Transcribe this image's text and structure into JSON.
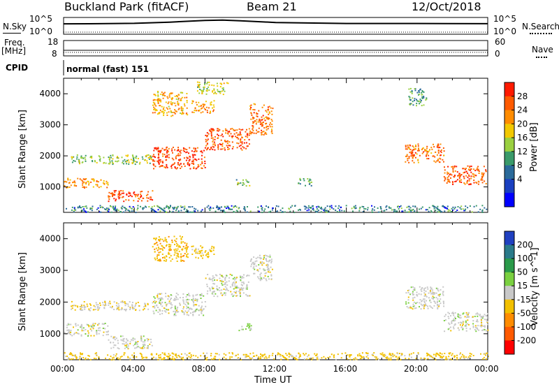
{
  "header": {
    "title": "Buckland Park (fitACF)",
    "beam": "Beam 21",
    "date": "12/Oct/2018"
  },
  "strip": {
    "nsky_label": "N.Sky",
    "nsearch_label": "N.Search",
    "noise_top_tick": "10^5",
    "noise_bottom_tick": "10^0",
    "freq_label": "Freq.",
    "freq_unit": "[MHz]",
    "freq_top": "18",
    "freq_bottom": "8",
    "nave_label": "Nave",
    "nave_top": "60",
    "nave_bottom": "0",
    "cpid_label": "CPID",
    "cpid_value": "normal (fast) 151"
  },
  "panels": {
    "ylabel": "Slant Range [km]",
    "xlabel": "Time UT",
    "xticks": [
      "00:00",
      "04:00",
      "08:00",
      "12:00",
      "16:00",
      "20:00",
      "00:00"
    ],
    "yticks": [
      "1000",
      "2000",
      "3000",
      "4000"
    ]
  },
  "colorbars": {
    "power_label": "Power [dB]",
    "power_ticks": [
      "28",
      "24",
      "20",
      "16",
      "12",
      "8",
      "4"
    ],
    "power_colors": [
      "#ff1a00",
      "#ff5a00",
      "#ff8c00",
      "#f2c800",
      "#9ad040",
      "#3a9a6a",
      "#2a6a9a",
      "#1a40c0",
      "#0000ff"
    ],
    "velocity_label": "Velocity [m s^-1]",
    "velocity_ticks": [
      "200",
      "100",
      "50",
      "15",
      "-15",
      "-50",
      "-100",
      "-200"
    ],
    "velocity_colors": [
      "#2040c0",
      "#2a7a8a",
      "#2a9a4a",
      "#7ad040",
      "#c8c8c8",
      "#f2c000",
      "#ff8c00",
      "#ff5a00",
      "#ff0000"
    ]
  },
  "chart_data": {
    "type": "heatmap",
    "x_range_hours": [
      0,
      24
    ],
    "y_range_km": [
      180,
      4500
    ],
    "grid": false,
    "power_clusters": [
      {
        "t0": 0.0,
        "t1": 2.5,
        "r0": 980,
        "r1": 1300,
        "value_db": 22
      },
      {
        "t0": 2.5,
        "t1": 5.0,
        "r0": 550,
        "r1": 900,
        "value_db": 28
      },
      {
        "t0": 0.4,
        "t1": 5.0,
        "r0": 1750,
        "r1": 2050,
        "value_db": 14
      },
      {
        "t0": 5.0,
        "t1": 8.0,
        "r0": 1600,
        "r1": 2300,
        "value_db": 28
      },
      {
        "t0": 8.0,
        "t1": 10.5,
        "r0": 2200,
        "r1": 2900,
        "value_db": 26
      },
      {
        "t0": 10.5,
        "t1": 11.8,
        "r0": 2700,
        "r1": 3700,
        "value_db": 24
      },
      {
        "t0": 5.0,
        "t1": 7.0,
        "r0": 3300,
        "r1": 4100,
        "value_db": 20
      },
      {
        "t0": 7.2,
        "t1": 8.5,
        "r0": 3400,
        "r1": 3800,
        "value_db": 22
      },
      {
        "t0": 7.5,
        "t1": 9.3,
        "r0": 4000,
        "r1": 4400,
        "value_db": 16
      },
      {
        "t0": 9.6,
        "t1": 10.5,
        "r0": 1050,
        "r1": 1250,
        "value_db": 12
      },
      {
        "t0": 13.2,
        "t1": 14.0,
        "r0": 1050,
        "r1": 1300,
        "value_db": 10
      },
      {
        "t0": 19.5,
        "t1": 20.5,
        "r0": 3600,
        "r1": 4200,
        "value_db": 10
      },
      {
        "t0": 19.3,
        "t1": 21.5,
        "r0": 1800,
        "r1": 2400,
        "value_db": 24
      },
      {
        "t0": 21.5,
        "t1": 24.0,
        "r0": 1100,
        "r1": 1700,
        "value_db": 26
      },
      {
        "t0": 0.0,
        "t1": 24.0,
        "r0": 200,
        "r1": 420,
        "value_db": 8
      }
    ],
    "velocity_clusters": [
      {
        "t0": 0.0,
        "t1": 2.5,
        "r0": 950,
        "r1": 1350,
        "value_ms": 0
      },
      {
        "t0": 2.5,
        "t1": 5.0,
        "r0": 550,
        "r1": 950,
        "value_ms": 0
      },
      {
        "t0": 0.4,
        "t1": 5.0,
        "r0": 1750,
        "r1": 2050,
        "value_ms": -15
      },
      {
        "t0": 5.0,
        "t1": 8.0,
        "r0": 1600,
        "r1": 2300,
        "value_ms": 0
      },
      {
        "t0": 8.0,
        "t1": 10.5,
        "r0": 2200,
        "r1": 2900,
        "value_ms": 0
      },
      {
        "t0": 10.5,
        "t1": 11.8,
        "r0": 2700,
        "r1": 3500,
        "value_ms": 0
      },
      {
        "t0": 5.0,
        "t1": 7.0,
        "r0": 3300,
        "r1": 4100,
        "value_ms": -40
      },
      {
        "t0": 7.2,
        "t1": 8.5,
        "r0": 3400,
        "r1": 3800,
        "value_ms": -30
      },
      {
        "t0": 9.8,
        "t1": 10.6,
        "r0": 1100,
        "r1": 1350,
        "value_ms": 30
      },
      {
        "t0": 19.3,
        "t1": 21.5,
        "r0": 1800,
        "r1": 2500,
        "value_ms": 0
      },
      {
        "t0": 21.5,
        "t1": 24.0,
        "r0": 1100,
        "r1": 1700,
        "value_ms": 0
      },
      {
        "t0": 0.0,
        "t1": 24.0,
        "r0": 200,
        "r1": 420,
        "value_ms": -30
      }
    ],
    "noise_trace": [
      {
        "t": 0,
        "v": 0.62
      },
      {
        "t": 2,
        "v": 0.63
      },
      {
        "t": 4,
        "v": 0.65
      },
      {
        "t": 6,
        "v": 0.72
      },
      {
        "t": 8,
        "v": 0.82
      },
      {
        "t": 9,
        "v": 0.84
      },
      {
        "t": 10,
        "v": 0.8
      },
      {
        "t": 12,
        "v": 0.7
      },
      {
        "t": 16,
        "v": 0.64
      },
      {
        "t": 20,
        "v": 0.64
      },
      {
        "t": 24,
        "v": 0.63
      }
    ]
  }
}
